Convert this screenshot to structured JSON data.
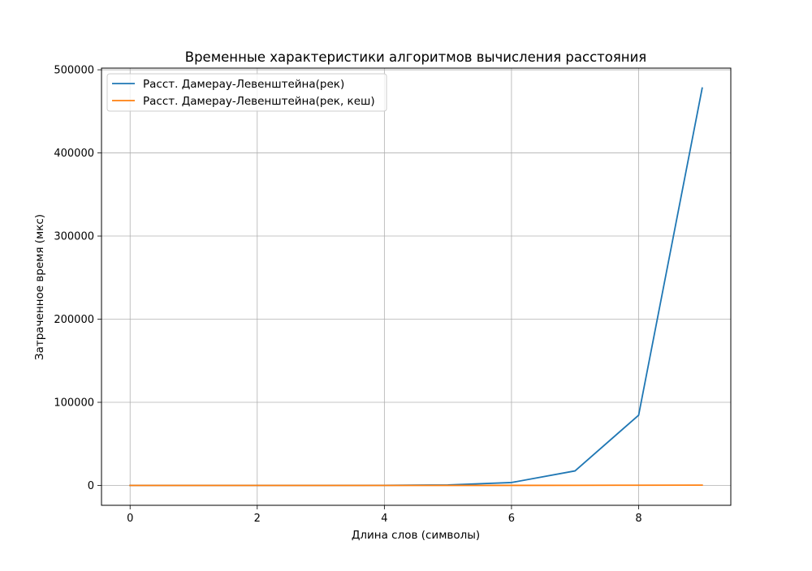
{
  "chart_data": {
    "type": "line",
    "title": "Временные характеристики алгоритмов вычисления расстояния",
    "xlabel": "Длина слов (символы)",
    "ylabel": "Затраченное время (мкс)",
    "x": [
      0,
      1,
      2,
      3,
      4,
      5,
      6,
      7,
      8,
      9
    ],
    "xlim": [
      -0.45,
      9.45
    ],
    "ylim": [
      -23900,
      502000
    ],
    "xticks": [
      0,
      2,
      4,
      6,
      8
    ],
    "yticks": [
      0,
      100000,
      200000,
      300000,
      400000,
      500000
    ],
    "grid": true,
    "legend_position": "upper-left",
    "series": [
      {
        "name": "Расст. Дамерау-Левенштейна(рек)",
        "color": "#1f77b4",
        "values": [
          1,
          3,
          10,
          40,
          150,
          650,
          3500,
          17500,
          84500,
          478000
        ]
      },
      {
        "name": "Расст. Дамерау-Левенштейна(рек, кеш)",
        "color": "#ff7f0e",
        "values": [
          1,
          2,
          5,
          10,
          20,
          40,
          80,
          150,
          250,
          400
        ]
      }
    ]
  }
}
